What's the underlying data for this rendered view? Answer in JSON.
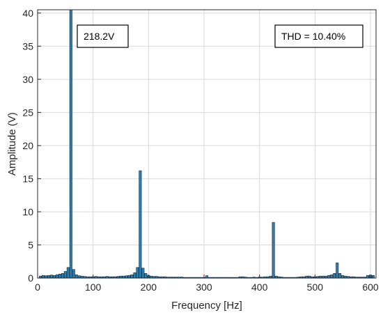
{
  "chart_data": {
    "type": "bar",
    "xlabel": "Frequency [Hz]",
    "ylabel": "Amplitude (V)",
    "xlim": [
      0,
      610
    ],
    "ylim": [
      0,
      40.5
    ],
    "xticks": [
      0,
      100,
      200,
      300,
      400,
      500,
      600
    ],
    "yticks": [
      0,
      5,
      10,
      15,
      20,
      25,
      30,
      35,
      40
    ],
    "grid": true,
    "bar_color": "#2e7fae",
    "bar_edge_color": "#0b2233",
    "annotations": [
      {
        "text": "218.2V"
      },
      {
        "text": "THD = 10.40%"
      }
    ],
    "series": [
      {
        "x": [
          5,
          10,
          15,
          20,
          25,
          30,
          35,
          40,
          45,
          50,
          55,
          60,
          65,
          70,
          75,
          80,
          85,
          90,
          95,
          100,
          105,
          110,
          115,
          120,
          125,
          130,
          135,
          140,
          145,
          150,
          155,
          160,
          165,
          170,
          175,
          180,
          185,
          190,
          195,
          200,
          205,
          210,
          215,
          220,
          225,
          230,
          235,
          240,
          245,
          250,
          255,
          260,
          265,
          270,
          275,
          280,
          285,
          290,
          295,
          300,
          305,
          310,
          315,
          320,
          325,
          330,
          335,
          340,
          345,
          350,
          355,
          360,
          365,
          370,
          375,
          380,
          385,
          390,
          395,
          400,
          405,
          410,
          415,
          420,
          425,
          430,
          435,
          440,
          445,
          450,
          455,
          460,
          465,
          470,
          475,
          480,
          485,
          490,
          495,
          500,
          505,
          510,
          515,
          520,
          525,
          530,
          535,
          540,
          545,
          550,
          555,
          560,
          565,
          570,
          575,
          580,
          585,
          590,
          595,
          600,
          605
        ],
        "values": [
          0.3,
          0.4,
          0.35,
          0.4,
          0.45,
          0.4,
          0.5,
          0.6,
          0.7,
          1.0,
          1.6,
          40.5,
          1.3,
          0.5,
          0.35,
          0.3,
          0.25,
          0.2,
          0.2,
          0.2,
          0.25,
          0.2,
          0.2,
          0.2,
          0.25,
          0.2,
          0.2,
          0.2,
          0.25,
          0.3,
          0.3,
          0.35,
          0.4,
          0.5,
          0.8,
          1.6,
          16.2,
          1.5,
          0.7,
          0.4,
          0.3,
          0.25,
          0.25,
          0.2,
          0.2,
          0.2,
          0.15,
          0.15,
          0.15,
          0.15,
          0.15,
          0.15,
          0.1,
          0.1,
          0.1,
          0.1,
          0.1,
          0.1,
          0.1,
          0.1,
          0.35,
          0.1,
          0.1,
          0.1,
          0.1,
          0.1,
          0.1,
          0.1,
          0.1,
          0.1,
          0.1,
          0.1,
          0.2,
          0.2,
          0.15,
          0.1,
          0.1,
          0.15,
          0.1,
          0.15,
          0.15,
          0.2,
          0.2,
          0.3,
          8.4,
          0.3,
          0.2,
          0.15,
          0.1,
          0.1,
          0.1,
          0.1,
          0.1,
          0.15,
          0.2,
          0.2,
          0.3,
          0.3,
          0.2,
          0.2,
          0.25,
          0.3,
          0.3,
          0.3,
          0.4,
          0.5,
          0.7,
          2.3,
          0.7,
          0.4,
          0.3,
          0.25,
          0.2,
          0.2,
          0.15,
          0.15,
          0.15,
          0.15,
          0.4,
          0.45,
          0.4
        ]
      }
    ]
  }
}
